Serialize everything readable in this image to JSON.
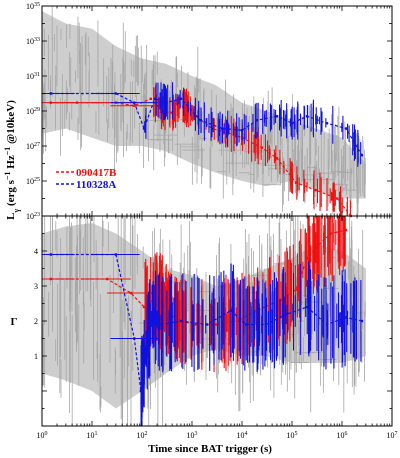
{
  "colors": {
    "red": "#ee1111",
    "blue": "#1111dd",
    "gray": "#a6a6a6",
    "axis": "#000000",
    "background": "#ffffff"
  },
  "chart_data": [
    {
      "type": "line",
      "panel": "top",
      "ylabel": "Lγ (erg s⁻¹ Hz⁻¹ @10keV)",
      "ylabel_parts": {
        "main": "L",
        "sub": "γ",
        "unit": " (erg s",
        "sup1": "−1",
        "mid": " Hz",
        "sup2": "−1",
        "tail": " @10keV)"
      },
      "xscale": "log",
      "yscale": "log",
      "xlim": [
        1,
        10000000
      ],
      "ylim": [
        1e+23,
        1e+35
      ],
      "xtick_labels": [
        {
          "exp": "0",
          "x": 1
        },
        {
          "exp": "1",
          "x": 10
        },
        {
          "exp": "2",
          "x": 100
        },
        {
          "exp": "3",
          "x": 1000
        },
        {
          "exp": "4",
          "x": 10000
        },
        {
          "exp": "5",
          "x": 100000
        },
        {
          "exp": "6",
          "x": 1000000
        },
        {
          "exp": "7",
          "x": 10000000
        }
      ],
      "ytick_labels": [
        {
          "exp": "23",
          "y": 1e+23
        },
        {
          "exp": "25",
          "y": 1e+25
        },
        {
          "exp": "27",
          "y": 1e+27
        },
        {
          "exp": "29",
          "y": 1e+29
        },
        {
          "exp": "31",
          "y": 1e+31
        },
        {
          "exp": "33",
          "y": 1e+33
        },
        {
          "exp": "35",
          "y": 1e+35
        }
      ],
      "legend_placement": "lower-left",
      "background_sample": {
        "band": [
          {
            "x": 1,
            "lo": 5e+27,
            "hi": 5e+34
          },
          {
            "x": 3,
            "lo": 1e+28,
            "hi": 1e+34
          },
          {
            "x": 10,
            "lo": 3e+27,
            "hi": 5e+33
          },
          {
            "x": 30,
            "lo": 1e+27,
            "hi": 5e+32
          },
          {
            "x": 100,
            "lo": 1e+27,
            "hi": 1e+32
          },
          {
            "x": 300,
            "lo": 5e+26,
            "hi": 5e+31
          },
          {
            "x": 1000,
            "lo": 1e+26,
            "hi": 1e+31
          },
          {
            "x": 3000,
            "lo": 3e+25,
            "hi": 3e+30
          },
          {
            "x": 10000,
            "lo": 1e+25,
            "hi": 3e+29
          },
          {
            "x": 30000,
            "lo": 5e+24,
            "hi": 1e+29
          },
          {
            "x": 100000,
            "lo": 1e+25,
            "hi": 3e+28
          },
          {
            "x": 300000,
            "lo": 3e+24,
            "hi": 1e+28
          },
          {
            "x": 1000000,
            "lo": 1e+24,
            "hi": 3e+27
          },
          {
            "x": 3000000,
            "lo": 1e+24,
            "hi": 1e+26
          }
        ]
      },
      "series": [
        {
          "name": "090417B",
          "color": "#ee1111",
          "points": [
            {
              "x": 1.5,
              "y": 3e+29
            },
            {
              "x": 5,
              "y": 3e+29
            },
            {
              "x": 30,
              "y": 3e+29
            },
            {
              "x": 70,
              "y": 2e+29
            },
            {
              "x": 150,
              "y": 5e+29
            },
            {
              "x": 250,
              "y": 1e+29
            },
            {
              "x": 400,
              "y": 8e+28
            },
            {
              "x": 700,
              "y": 2e+29
            },
            {
              "x": 1200,
              "y": 5e+28
            },
            {
              "x": 2500,
              "y": 1e+28
            },
            {
              "x": 5000,
              "y": 6e+27
            },
            {
              "x": 10000,
              "y": 3e+27
            },
            {
              "x": 25000,
              "y": 8e+26
            },
            {
              "x": 50000,
              "y": 2e+26
            },
            {
              "x": 120000,
              "y": 8e+24
            },
            {
              "x": 300000,
              "y": 3e+24
            },
            {
              "x": 800000,
              "y": 1e+24
            },
            {
              "x": 1500000,
              "y": 1e+23
            }
          ]
        },
        {
          "name": "110328A",
          "color": "#1111dd",
          "points": [
            {
              "x": 1.5,
              "y": 1e+30
            },
            {
              "x": 30,
              "y": 1e+30
            },
            {
              "x": 70,
              "y": 3e+29
            },
            {
              "x": 110,
              "y": 1e+28
            },
            {
              "x": 180,
              "y": 5e+29
            },
            {
              "x": 300,
              "y": 3e+29
            },
            {
              "x": 600,
              "y": 5e+29
            },
            {
              "x": 1500,
              "y": 3e+28
            },
            {
              "x": 4000,
              "y": 1e+28
            },
            {
              "x": 10000,
              "y": 8e+27
            },
            {
              "x": 20000,
              "y": 3e+28
            },
            {
              "x": 50000,
              "y": 5e+28
            },
            {
              "x": 100000,
              "y": 2e+28
            },
            {
              "x": 200000,
              "y": 5e+28
            },
            {
              "x": 500000,
              "y": 2e+28
            },
            {
              "x": 1200000,
              "y": 1e+28
            },
            {
              "x": 2500000,
              "y": 3e+26
            }
          ]
        }
      ]
    },
    {
      "type": "line",
      "panel": "bottom",
      "xlabel": "Time since BAT trigger (s)",
      "ylabel": "Γ",
      "xscale": "log",
      "yscale": "linear",
      "xlim": [
        1,
        10000000
      ],
      "ylim": [
        -1,
        5
      ],
      "xtick_labels": [
        {
          "exp": "0",
          "x": 1
        },
        {
          "exp": "1",
          "x": 10
        },
        {
          "exp": "2",
          "x": 100
        },
        {
          "exp": "3",
          "x": 1000
        },
        {
          "exp": "4",
          "x": 10000
        },
        {
          "exp": "5",
          "x": 100000
        },
        {
          "exp": "6",
          "x": 1000000
        },
        {
          "exp": "7",
          "x": 10000000
        }
      ],
      "ytick_labels": [
        {
          "text": "1",
          "y": 1
        },
        {
          "text": "2",
          "y": 2
        },
        {
          "text": "3",
          "y": 3
        },
        {
          "text": "4",
          "y": 4
        }
      ],
      "background_sample": {
        "band": [
          {
            "x": 1,
            "lo": 0.5,
            "hi": 4.5
          },
          {
            "x": 3,
            "lo": 0.3,
            "hi": 4.7
          },
          {
            "x": 10,
            "lo": 0.0,
            "hi": 4.8
          },
          {
            "x": 30,
            "lo": -0.5,
            "hi": 4.5
          },
          {
            "x": 100,
            "lo": 0.0,
            "hi": 4.0
          },
          {
            "x": 300,
            "lo": 0.5,
            "hi": 3.5
          },
          {
            "x": 1000,
            "lo": 1.0,
            "hi": 3.3
          },
          {
            "x": 3000,
            "lo": 1.2,
            "hi": 3.0
          },
          {
            "x": 10000,
            "lo": 1.0,
            "hi": 3.2
          },
          {
            "x": 30000,
            "lo": 1.0,
            "hi": 3.5
          },
          {
            "x": 100000,
            "lo": 0.8,
            "hi": 3.8
          },
          {
            "x": 300000,
            "lo": 0.8,
            "hi": 4.2
          },
          {
            "x": 1000000,
            "lo": 0.8,
            "hi": 4.0
          },
          {
            "x": 3000000,
            "lo": 1.0,
            "hi": 3.5
          }
        ]
      },
      "series": [
        {
          "name": "090417B",
          "color": "#ee1111",
          "points": [
            {
              "x": 1.5,
              "y": 3.2
            },
            {
              "x": 20,
              "y": 3.2
            },
            {
              "x": 60,
              "y": 2.8
            },
            {
              "x": 110,
              "y": 2.4
            },
            {
              "x": 200,
              "y": 2.7
            },
            {
              "x": 350,
              "y": 2.2
            },
            {
              "x": 600,
              "y": 2.0
            },
            {
              "x": 1200,
              "y": 1.9
            },
            {
              "x": 3000,
              "y": 1.9
            },
            {
              "x": 8000,
              "y": 2.0
            },
            {
              "x": 20000,
              "y": 2.3
            },
            {
              "x": 60000,
              "y": 2.6
            },
            {
              "x": 120000,
              "y": 2.9
            },
            {
              "x": 200000,
              "y": 3.8
            },
            {
              "x": 300000,
              "y": 4.1
            },
            {
              "x": 600000,
              "y": 4.5
            },
            {
              "x": 1200000,
              "y": 4.6
            }
          ]
        },
        {
          "name": "110328A",
          "color": "#1111dd",
          "points": [
            {
              "x": 1.5,
              "y": 3.9
            },
            {
              "x": 30,
              "y": 3.9
            },
            {
              "x": 70,
              "y": 1.5
            },
            {
              "x": 95,
              "y": 0.0
            },
            {
              "x": 120,
              "y": 1.2
            },
            {
              "x": 160,
              "y": 2.2
            },
            {
              "x": 250,
              "y": 1.9
            },
            {
              "x": 600,
              "y": 2.0
            },
            {
              "x": 2000,
              "y": 1.9
            },
            {
              "x": 6000,
              "y": 2.3
            },
            {
              "x": 12000,
              "y": 1.9
            },
            {
              "x": 30000,
              "y": 1.9
            },
            {
              "x": 80000,
              "y": 2.2
            },
            {
              "x": 200000,
              "y": 2.4
            },
            {
              "x": 500000,
              "y": 1.9
            },
            {
              "x": 1200000,
              "y": 2.1
            },
            {
              "x": 2500000,
              "y": 2.0
            }
          ]
        }
      ]
    }
  ]
}
